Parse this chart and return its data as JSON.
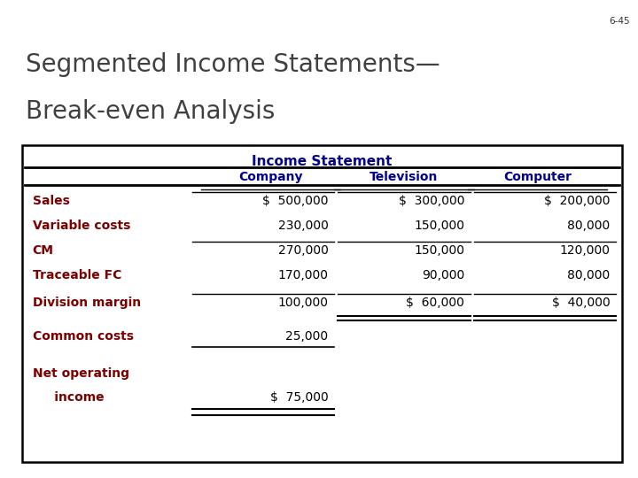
{
  "slide_bg": "#ffffff",
  "header_bg_top": "#add8e6",
  "header_bg_bottom": "#7b96c8",
  "header_text": "6-45",
  "title_line1": "Segmented Income Statements—",
  "title_line2": "Break-even Analysis",
  "title_color": "#404040",
  "table_header": "Income Statement",
  "col_header_color": "#00008B",
  "row_label_color": "#7B0000",
  "value_color": "#000000",
  "rows": [
    {
      "label": "Sales",
      "company": "$  500,000",
      "television": "$  300,000",
      "computer": "$  200,000",
      "line_above_company": true,
      "line_above_tv": true,
      "line_above_comp": true,
      "double_line_company": false,
      "double_line_tv": false,
      "double_line_comp": false
    },
    {
      "label": "Variable costs",
      "company": "230,000",
      "television": "150,000",
      "computer": "80,000",
      "line_above_company": false,
      "line_above_tv": false,
      "line_above_comp": false,
      "double_line_company": false,
      "double_line_tv": false,
      "double_line_comp": false
    },
    {
      "label": "CM",
      "company": "270,000",
      "television": "150,000",
      "computer": "120,000",
      "line_above_company": true,
      "line_above_tv": true,
      "line_above_comp": true,
      "double_line_company": false,
      "double_line_tv": false,
      "double_line_comp": false
    },
    {
      "label": "Traceable FC",
      "company": "170,000",
      "television": "90,000",
      "computer": "80,000",
      "line_above_company": false,
      "line_above_tv": false,
      "line_above_comp": false,
      "double_line_company": false,
      "double_line_tv": false,
      "double_line_comp": false
    },
    {
      "label": "Division margin",
      "company": "100,000",
      "television": "$  60,000",
      "computer": "$  40,000",
      "line_above_company": true,
      "line_above_tv": true,
      "line_above_comp": true,
      "double_line_company": false,
      "double_line_tv": true,
      "double_line_comp": true
    },
    {
      "label": "Common costs",
      "company": "25,000",
      "television": "",
      "computer": "",
      "line_above_company": false,
      "line_above_tv": false,
      "line_above_comp": false,
      "double_line_company": false,
      "double_line_tv": false,
      "double_line_comp": false,
      "single_line_below_company": true
    },
    {
      "label": "Net operating",
      "label2": "     income",
      "company": "$  75,000",
      "television": "",
      "computer": "",
      "line_above_company": false,
      "line_above_tv": false,
      "line_above_comp": false,
      "double_line_company": true,
      "double_line_tv": false,
      "double_line_comp": false
    }
  ],
  "table_border_color": "#000000",
  "line_color": "#000000"
}
